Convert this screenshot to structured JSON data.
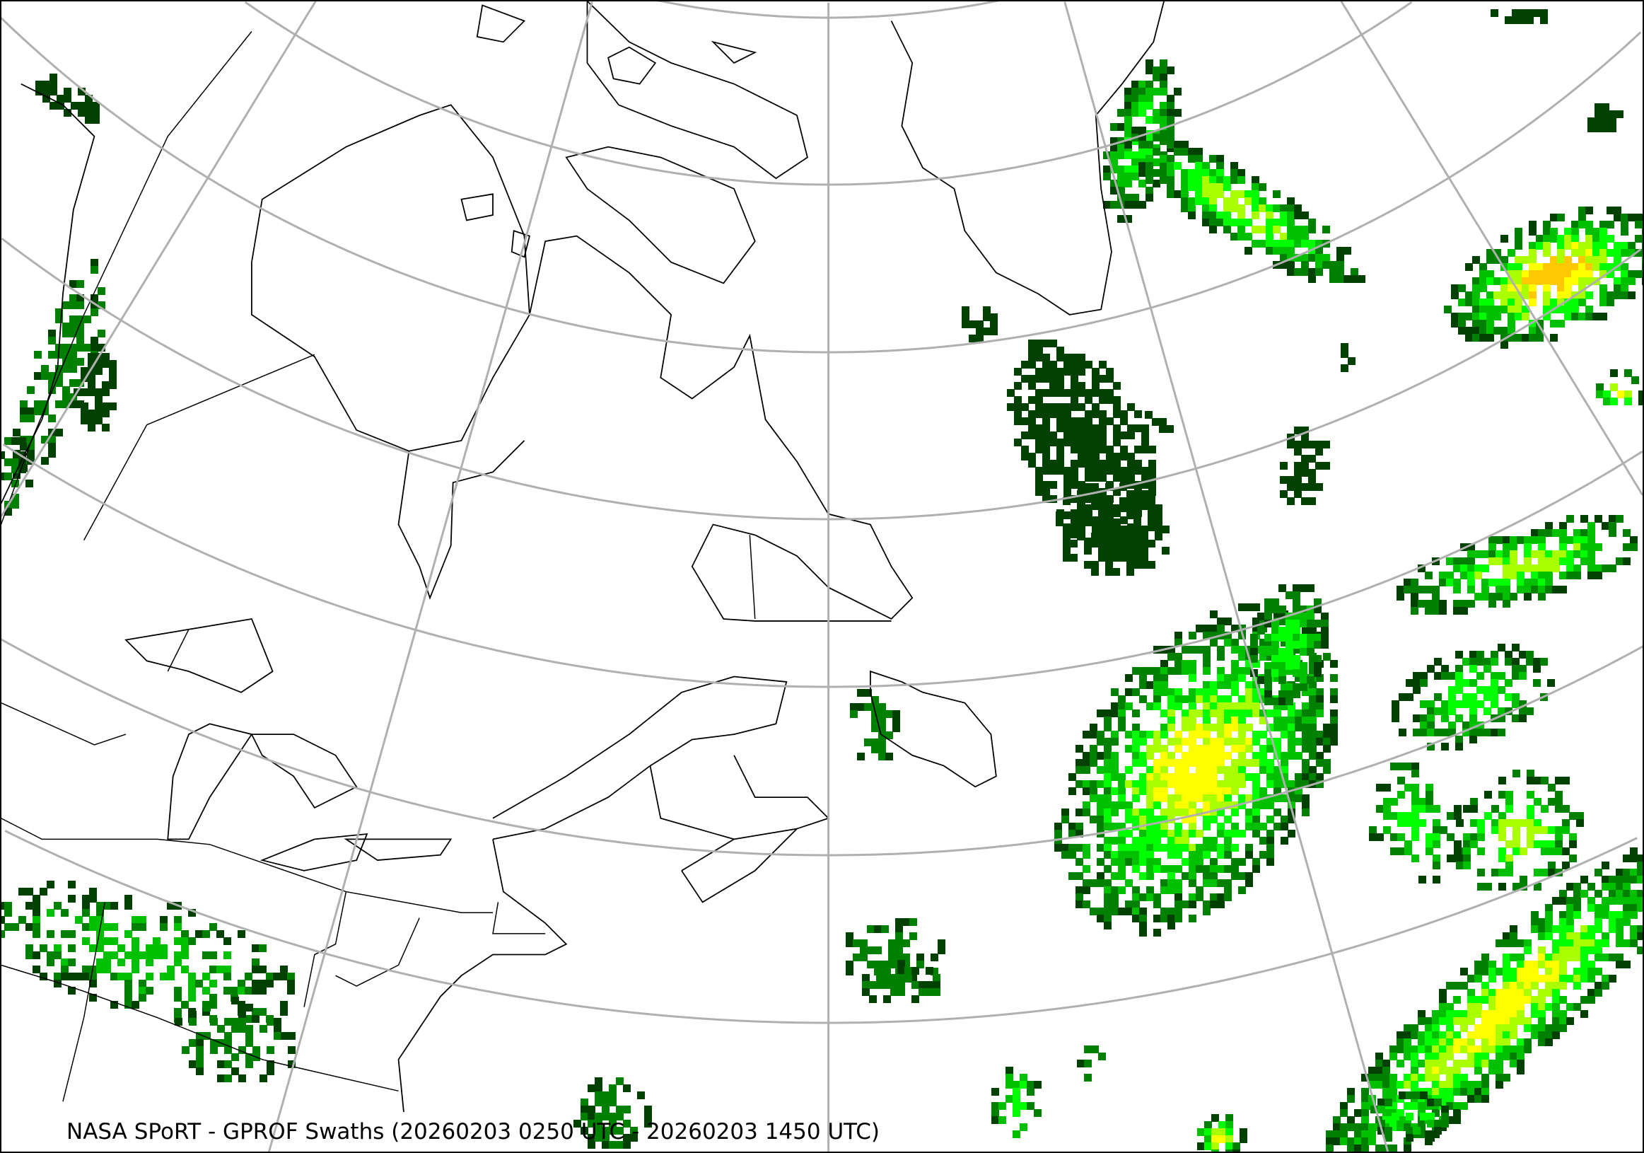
{
  "map": {
    "caption": "NASA SPoRT - GPROF Swaths (20260203 0250 UTC - 20260203 1450 UTC)",
    "projection": "lambert-conformal",
    "graticule_color": "#b0b0b0",
    "coastline_color": "#000000",
    "precip_colors": [
      "#004000",
      "#008000",
      "#00c000",
      "#00ff00",
      "#aaff00",
      "#ffff00",
      "#ffc800",
      "#ff8000"
    ]
  }
}
